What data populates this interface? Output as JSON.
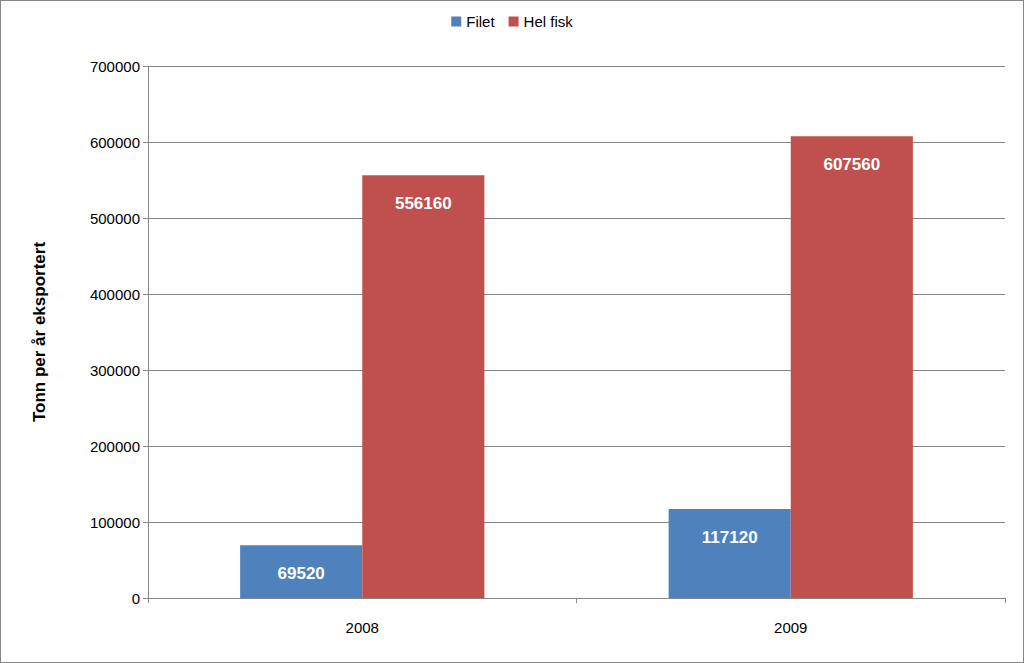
{
  "chart_data": {
    "type": "bar",
    "y_label": "Tonn per år eksportert",
    "categories": [
      "2008",
      "2009"
    ],
    "series": [
      {
        "name": "Filet",
        "color": "#4f81bd",
        "values": [
          69520,
          117120
        ]
      },
      {
        "name": "Hel fisk",
        "color": "#c0504d",
        "values": [
          556160,
          607560
        ]
      }
    ],
    "ylim": [
      0,
      700000
    ],
    "yticks": [
      0,
      100000,
      200000,
      300000,
      400000,
      500000,
      600000,
      700000
    ],
    "grid": true,
    "legend": "top",
    "data_labels": true
  }
}
